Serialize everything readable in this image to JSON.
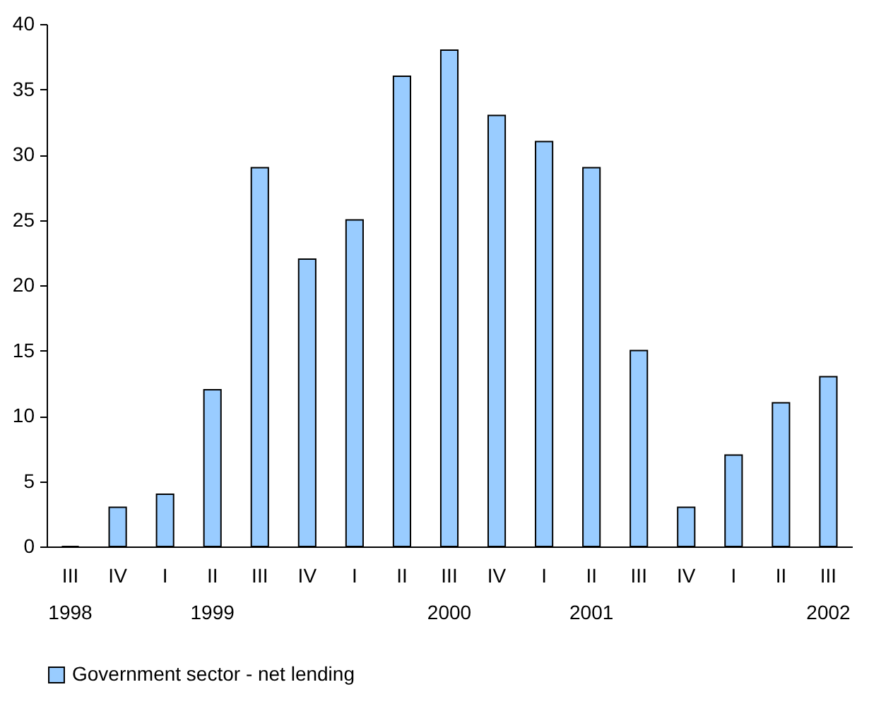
{
  "chart_data": {
    "type": "bar",
    "categories": [
      "III\n1998",
      "IV",
      "I",
      "II\n1999",
      "III",
      "IV",
      "I",
      "II",
      "III\n2000",
      "IV",
      "I",
      "II\n2001",
      "III",
      "IV",
      "I",
      "II",
      "III\n2002"
    ],
    "series": [
      {
        "name": "Government sector - net lending",
        "color": "#99ccff",
        "values": [
          0,
          3,
          4,
          12,
          29,
          22,
          25,
          36,
          38,
          33,
          31,
          29,
          15,
          3,
          7,
          11,
          13
        ]
      }
    ],
    "ylim": [
      0,
      40
    ],
    "yticks": [
      0,
      5,
      10,
      15,
      20,
      25,
      30,
      35,
      40
    ],
    "grid": false,
    "legend": "bottom"
  }
}
